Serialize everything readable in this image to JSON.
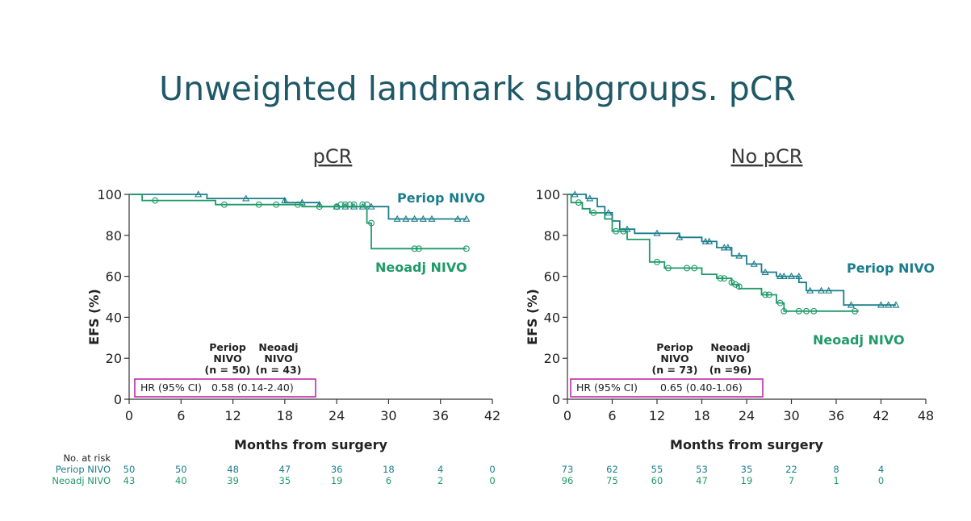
{
  "page": {
    "title": "Unweighted landmark subgroups. pCR"
  },
  "colors": {
    "periop": "#1a7d8c",
    "neoadj": "#1f9a68",
    "hr_box": "#c02aa6",
    "title": "#1f5866"
  },
  "risk_header": "No. at risk",
  "chart_data": [
    {
      "type": "line",
      "title": "pCR",
      "xlabel": "Months from surgery",
      "ylabel": "EFS (%)",
      "xlim": [
        0,
        42
      ],
      "ylim": [
        0,
        100
      ],
      "xticks": [
        0,
        6,
        12,
        18,
        24,
        30,
        36,
        42
      ],
      "yticks": [
        0,
        20,
        40,
        60,
        80,
        100
      ],
      "grid": false,
      "series": [
        {
          "name": "Periop NIVO",
          "color": "#1a7d8c",
          "marker": "triangle",
          "steps": [
            [
              0,
              100
            ],
            [
              9,
              100
            ],
            [
              9,
              98
            ],
            [
              18,
              98
            ],
            [
              18,
              96
            ],
            [
              22,
              96
            ],
            [
              22,
              94
            ],
            [
              30,
              94
            ],
            [
              30,
              88
            ],
            [
              39,
              88
            ]
          ],
          "censors": [
            [
              8,
              100
            ],
            [
              13.5,
              98
            ],
            [
              18,
              97
            ],
            [
              20,
              96
            ],
            [
              22,
              95
            ],
            [
              24,
              94
            ],
            [
              25,
              94
            ],
            [
              26,
              94
            ],
            [
              27,
              94
            ],
            [
              28,
              94
            ],
            [
              31,
              88
            ],
            [
              32,
              88
            ],
            [
              33,
              88
            ],
            [
              34,
              88
            ],
            [
              35,
              88
            ],
            [
              38,
              88
            ],
            [
              39,
              88
            ]
          ]
        },
        {
          "name": "Neoadj NIVO",
          "color": "#1f9a68",
          "marker": "circle",
          "steps": [
            [
              0,
              100
            ],
            [
              1.5,
              100
            ],
            [
              1.5,
              97
            ],
            [
              10,
              97
            ],
            [
              10,
              95
            ],
            [
              20,
              95
            ],
            [
              20,
              94
            ],
            [
              27.5,
              94
            ],
            [
              27.5,
              86
            ],
            [
              28,
              86
            ],
            [
              28,
              73.5
            ],
            [
              39,
              73.5
            ]
          ],
          "censors": [
            [
              3,
              97
            ],
            [
              11,
              95
            ],
            [
              15,
              95
            ],
            [
              17,
              95
            ],
            [
              19.5,
              95
            ],
            [
              22,
              94
            ],
            [
              24,
              94
            ],
            [
              24.5,
              95
            ],
            [
              25,
              95
            ],
            [
              25.5,
              95
            ],
            [
              26,
              95
            ],
            [
              27,
              95
            ],
            [
              27.5,
              95
            ],
            [
              28,
              86
            ],
            [
              33,
              73.5
            ],
            [
              33.5,
              73.5
            ],
            [
              39,
              73.5
            ]
          ]
        }
      ],
      "stats": {
        "col_headers": [
          [
            "Periop",
            "NIVO",
            "(n = 50)"
          ],
          [
            "Neoadj",
            "NIVO",
            "(n = 43)"
          ]
        ],
        "hr_label": "HR (95% CI)",
        "hr_value": "0.58 (0.14-2.40)"
      },
      "at_risk": {
        "labels": [
          "Periop NIVO",
          "Neoadj NIVO"
        ],
        "times": [
          0,
          6,
          12,
          18,
          24,
          30,
          36,
          42
        ],
        "values": [
          [
            50,
            50,
            48,
            47,
            36,
            18,
            4,
            0
          ],
          [
            43,
            40,
            39,
            35,
            19,
            6,
            2,
            0
          ]
        ]
      }
    },
    {
      "type": "line",
      "title": "No pCR",
      "xlabel": "Months from surgery",
      "ylabel": "EFS (%)",
      "xlim": [
        0,
        48
      ],
      "ylim": [
        0,
        100
      ],
      "xticks": [
        0,
        6,
        12,
        18,
        24,
        30,
        36,
        42,
        48
      ],
      "yticks": [
        0,
        20,
        40,
        60,
        80,
        100
      ],
      "grid": false,
      "series": [
        {
          "name": "Periop NIVO",
          "color": "#1a7d8c",
          "marker": "triangle",
          "steps": [
            [
              0,
              100
            ],
            [
              2.5,
              100
            ],
            [
              2.5,
              98
            ],
            [
              4,
              98
            ],
            [
              4,
              94
            ],
            [
              5,
              94
            ],
            [
              5,
              91
            ],
            [
              6,
              91
            ],
            [
              6,
              87
            ],
            [
              7,
              87
            ],
            [
              7,
              83
            ],
            [
              9,
              83
            ],
            [
              9,
              81
            ],
            [
              15,
              81
            ],
            [
              15,
              79
            ],
            [
              18,
              79
            ],
            [
              18,
              77
            ],
            [
              20,
              77
            ],
            [
              20,
              74
            ],
            [
              22,
              74
            ],
            [
              22,
              70
            ],
            [
              24,
              70
            ],
            [
              24,
              66
            ],
            [
              26,
              66
            ],
            [
              26,
              62
            ],
            [
              28,
              62
            ],
            [
              28,
              60
            ],
            [
              31,
              60
            ],
            [
              31,
              57
            ],
            [
              32,
              57
            ],
            [
              32,
              53
            ],
            [
              37,
              53
            ],
            [
              37,
              46
            ],
            [
              44,
              46
            ]
          ],
          "censors": [
            [
              1,
              100
            ],
            [
              3,
              98
            ],
            [
              5.5,
              91
            ],
            [
              8,
              83
            ],
            [
              12,
              81
            ],
            [
              15,
              79
            ],
            [
              18.5,
              77
            ],
            [
              19,
              77
            ],
            [
              21,
              74
            ],
            [
              21.5,
              74
            ],
            [
              23,
              70
            ],
            [
              25,
              66
            ],
            [
              26.5,
              62
            ],
            [
              28.5,
              60
            ],
            [
              29,
              60
            ],
            [
              30,
              60
            ],
            [
              31,
              60
            ],
            [
              32.5,
              53
            ],
            [
              34,
              53
            ],
            [
              35,
              53
            ],
            [
              38,
              46
            ],
            [
              42,
              46
            ],
            [
              43,
              46
            ],
            [
              44,
              46
            ]
          ]
        },
        {
          "name": "Neoadj NIVO",
          "color": "#1f9a68",
          "marker": "circle",
          "steps": [
            [
              0,
              100
            ],
            [
              0.5,
              100
            ],
            [
              0.5,
              96
            ],
            [
              2,
              96
            ],
            [
              2,
              93
            ],
            [
              3,
              93
            ],
            [
              3,
              91
            ],
            [
              5,
              91
            ],
            [
              5,
              88
            ],
            [
              6,
              88
            ],
            [
              6,
              82
            ],
            [
              8,
              82
            ],
            [
              8,
              78
            ],
            [
              11,
              78
            ],
            [
              11,
              67
            ],
            [
              13,
              67
            ],
            [
              13,
              64
            ],
            [
              18,
              64
            ],
            [
              18,
              61
            ],
            [
              20,
              61
            ],
            [
              20,
              59
            ],
            [
              22,
              59
            ],
            [
              22,
              56
            ],
            [
              23,
              56
            ],
            [
              23,
              54
            ],
            [
              26,
              54
            ],
            [
              26,
              51
            ],
            [
              28,
              51
            ],
            [
              28,
              47
            ],
            [
              29,
              47
            ],
            [
              29,
              43
            ],
            [
              39,
              43
            ]
          ],
          "censors": [
            [
              1.5,
              96
            ],
            [
              3.5,
              91
            ],
            [
              6.5,
              82
            ],
            [
              7.5,
              82
            ],
            [
              12,
              67
            ],
            [
              13.5,
              64
            ],
            [
              16,
              64
            ],
            [
              17,
              64
            ],
            [
              20.5,
              59
            ],
            [
              21,
              59
            ],
            [
              22,
              57
            ],
            [
              22.5,
              56
            ],
            [
              23,
              55
            ],
            [
              26.5,
              51
            ],
            [
              27,
              51
            ],
            [
              28.5,
              47
            ],
            [
              29,
              43
            ],
            [
              31,
              43
            ],
            [
              32,
              43
            ],
            [
              33,
              43
            ],
            [
              38.5,
              43
            ]
          ]
        }
      ],
      "stats": {
        "col_headers": [
          [
            "Periop",
            "NIVO",
            "(n = 73)"
          ],
          [
            "Neoadj",
            "NIVO",
            "(n =96)"
          ]
        ],
        "hr_label": "HR (95% CI)",
        "hr_value": "0.65 (0.40-1.06)"
      },
      "at_risk": {
        "labels": [],
        "times": [
          0,
          6,
          12,
          18,
          24,
          30,
          36,
          42
        ],
        "values": [
          [
            73,
            62,
            55,
            53,
            35,
            22,
            8,
            4
          ],
          [
            96,
            75,
            60,
            47,
            19,
            7,
            1,
            0
          ]
        ]
      }
    }
  ]
}
